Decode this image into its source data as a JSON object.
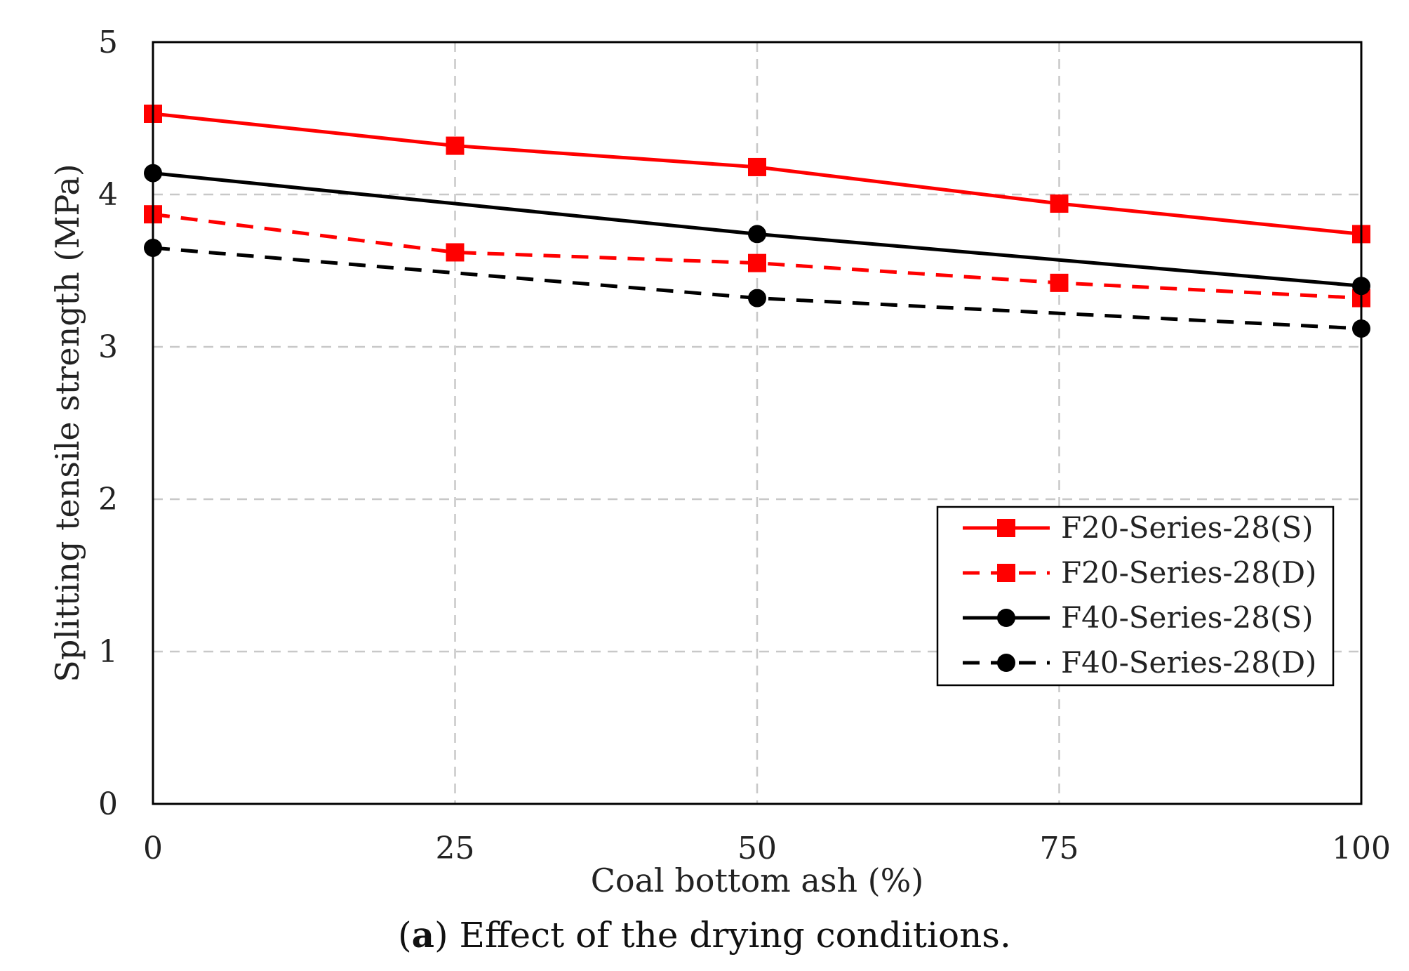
{
  "chart_data": {
    "type": "line",
    "title": "",
    "xlabel": "Coal bottom ash (%)",
    "ylabel": "Splitting tensile strength (MPa)",
    "x": [
      0,
      25,
      50,
      75,
      100
    ],
    "xlim": [
      0,
      100
    ],
    "ylim": [
      0,
      5
    ],
    "xticks": [
      "0",
      "25",
      "50",
      "75",
      "100"
    ],
    "yticks": [
      "0",
      "1",
      "2",
      "3",
      "4",
      "5"
    ],
    "grid": true,
    "legend_position": "lower-right",
    "series": [
      {
        "name": "F20-Series-28(S)",
        "color": "#ff0000",
        "dash": "solid",
        "marker": "square",
        "values": [
          4.53,
          4.32,
          4.18,
          3.94,
          3.74
        ]
      },
      {
        "name": "F20-Series-28(D)",
        "color": "#ff0000",
        "dash": "dashed",
        "marker": "square",
        "values": [
          3.87,
          3.62,
          3.55,
          3.42,
          3.32
        ]
      },
      {
        "name": "F40-Series-28(S)",
        "color": "#000000",
        "dash": "solid",
        "marker": "circle",
        "values": [
          4.14,
          null,
          3.74,
          null,
          3.4
        ]
      },
      {
        "name": "F40-Series-28(D)",
        "color": "#000000",
        "dash": "dashed",
        "marker": "circle",
        "values": [
          3.65,
          null,
          3.32,
          null,
          3.12
        ]
      }
    ]
  },
  "caption": {
    "letter": "a",
    "open": "(",
    "close": ")",
    "text": " Effect of the drying conditions."
  }
}
